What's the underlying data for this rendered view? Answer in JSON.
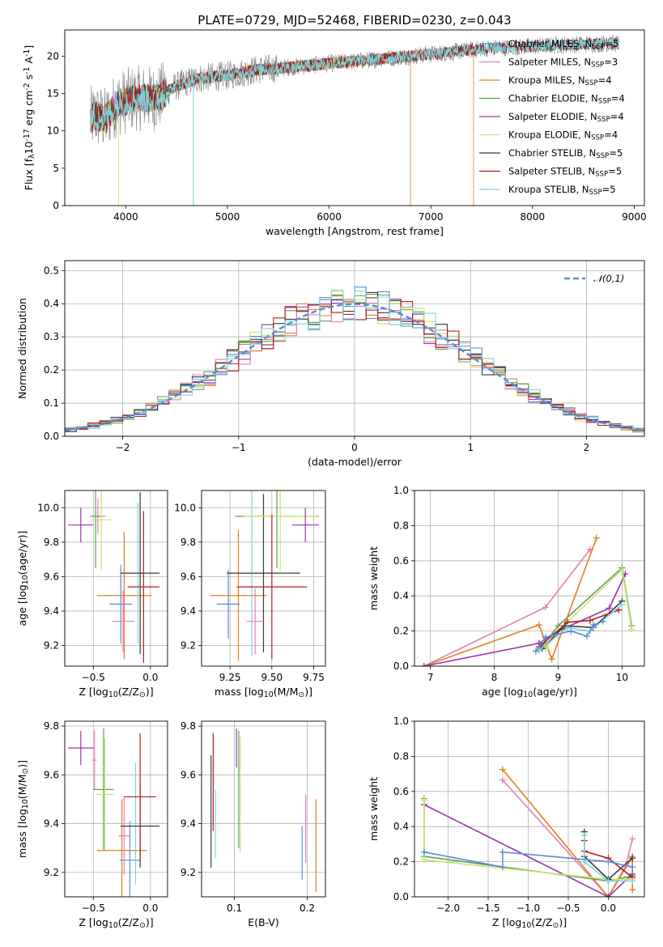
{
  "figure": {
    "title": "PLATE=0729, MJD=52468, FIBERID=0230, z=0.043"
  },
  "colors": {
    "blue": "#5b8bd5",
    "orange": "#e07f1f",
    "green": "#5c9f5a",
    "purple": "#9a36ae",
    "pink": "#e67fb3",
    "lime": "#c8e66b",
    "black": "#3a3a3a",
    "red": "#b41e1e",
    "cyan": "#7fd3dc",
    "gray": "#808080"
  },
  "chart_data": [
    {
      "id": "spectrum",
      "type": "line",
      "xlabel": "wavelength [Angstrom, rest frame]",
      "ylabel": "Flux [f$_\\lambda$10$^{-17}$ erg cm$^{-2}$ s$^{-1}$ A$^{-1}$]",
      "xlim": [
        3400,
        9100
      ],
      "ylim": [
        0,
        23.5
      ],
      "xticks": [
        4000,
        5000,
        6000,
        7000,
        8000,
        9000
      ],
      "yticks": [
        0,
        5,
        10,
        15,
        20
      ],
      "legend_position": "right",
      "series": [
        {
          "name": "Chabrier MILES, N$_{SSP}$=5",
          "color": "blue",
          "range": [
            3650,
            7420
          ]
        },
        {
          "name": "Salpeter MILES, N$_{SSP}$=3",
          "color": "pink",
          "range": [
            3650,
            7420
          ]
        },
        {
          "name": "Kroupa MILES, N$_{SSP}$=4",
          "color": "orange",
          "range": [
            3650,
            7420
          ]
        },
        {
          "name": "Chabrier ELODIE, N$_{SSP}$=4",
          "color": "green",
          "range": [
            3650,
            6800
          ]
        },
        {
          "name": "Salpeter ELODIE, N$_{SSP}$=4",
          "color": "purple",
          "range": [
            3650,
            6800
          ]
        },
        {
          "name": "Kroupa ELODIE, N$_{SSP}$=4",
          "color": "lime",
          "range": [
            3650,
            6800
          ]
        },
        {
          "name": "Chabrier STELIB, N$_{SSP}$=5",
          "color": "black",
          "range": [
            3650,
            8850
          ]
        },
        {
          "name": "Salpeter STELIB, N$_{SSP}$=5",
          "color": "red",
          "range": [
            3650,
            8850
          ]
        },
        {
          "name": "Kroupa STELIB, N$_{SSP}$=5",
          "color": "cyan",
          "range": [
            3650,
            8850
          ]
        }
      ],
      "data_color": "gray",
      "continuum": {
        "x": [
          3650,
          3700,
          3800,
          3900,
          4000,
          4100,
          4200,
          4300,
          4400,
          4500,
          4700,
          5000,
          5300,
          5600,
          6000,
          6400,
          6800,
          7200,
          7500,
          8000,
          8500,
          8850
        ],
        "y": [
          11.5,
          12.0,
          11.5,
          13.5,
          14.0,
          14.4,
          14.4,
          14.3,
          15.2,
          16.0,
          17.0,
          17.4,
          18.2,
          18.5,
          19.0,
          19.5,
          20.0,
          20.5,
          21.0,
          21.3,
          21.6,
          21.7
        ]
      },
      "dips": [
        {
          "x": 4665,
          "series": "cyan"
        },
        {
          "x": 6800,
          "series": "orange"
        },
        {
          "x": 7420,
          "series": "orange"
        },
        {
          "x": 3930,
          "series": "lime"
        }
      ]
    },
    {
      "id": "residuals",
      "type": "line",
      "xlabel": "(data-model)/error",
      "ylabel": "Normed distribution",
      "xlim": [
        -2.5,
        2.5
      ],
      "ylim": [
        0,
        0.53
      ],
      "xticks": [
        -2,
        -1,
        0,
        1,
        2
      ],
      "yticks": [
        0.0,
        0.1,
        0.2,
        0.3,
        0.4,
        0.5
      ],
      "legend": "$\\mathcal{N}(0,1)$",
      "legend_position": "top-right",
      "bin_width": 0.1,
      "curve": {
        "name": "normal",
        "mu": 0,
        "sigma": 1,
        "color": "blue"
      }
    },
    {
      "id": "age-vs-Z",
      "type": "scatter",
      "xlabel": "Z [log$_{10}$(Z/Z$_\\odot$)]",
      "ylabel": "age  [log$_{10}$(age/yr)]",
      "xlim": [
        -0.75,
        0.15
      ],
      "ylim": [
        9.08,
        10.1
      ],
      "xticks": [
        -0.5,
        0.0
      ],
      "yticks": [
        9.2,
        9.4,
        9.6,
        9.8,
        10.0
      ],
      "points": [
        {
          "series": "purple",
          "x": -0.61,
          "y": 9.9,
          "xerr": 0.11,
          "yerr": 0.1
        },
        {
          "series": "pink",
          "x": -0.46,
          "y": 9.95,
          "xerr": 0.07,
          "yerr": 0.1
        },
        {
          "series": "green",
          "x": -0.48,
          "y": 9.95,
          "xerr": 0.04,
          "yerr": 0.3
        },
        {
          "series": "lime",
          "x": -0.43,
          "y": 9.93,
          "xerr": 0.09,
          "yerr": 0.29
        },
        {
          "series": "orange",
          "x": -0.23,
          "y": 9.49,
          "xerr": 0.24,
          "yerr": 0.37
        },
        {
          "series": "blue",
          "x": -0.26,
          "y": 9.44,
          "xerr": 0.1,
          "yerr": 0.23
        },
        {
          "series": "pink",
          "x": -0.24,
          "y": 9.34,
          "xerr": 0.1,
          "yerr": 0.18
        },
        {
          "series": "cyan",
          "x": -0.11,
          "y": 9.62,
          "xerr": 0.06,
          "yerr": 0.41
        },
        {
          "series": "black",
          "x": -0.09,
          "y": 9.62,
          "xerr": 0.17,
          "yerr": 0.47
        },
        {
          "series": "red",
          "x": -0.06,
          "y": 9.54,
          "xerr": 0.14,
          "yerr": 0.44
        }
      ]
    },
    {
      "id": "age-vs-mass",
      "type": "scatter",
      "xlabel": "mass [log$_{10}$(M/M$_\\odot$)]",
      "ylabel": "",
      "xlim": [
        9.08,
        9.82
      ],
      "ylim": [
        9.08,
        10.1
      ],
      "xticks": [
        9.25,
        9.5,
        9.75
      ],
      "yticks": [
        9.2,
        9.4,
        9.6,
        9.8,
        10.0
      ],
      "points": [
        {
          "series": "blue",
          "x": 9.24,
          "y": 9.44,
          "xerr": 0.07,
          "yerr": 0.2
        },
        {
          "series": "orange",
          "x": 9.3,
          "y": 9.49,
          "xerr": 0.17,
          "yerr": 0.38
        },
        {
          "series": "green",
          "x": 9.53,
          "y": 9.95,
          "xerr": 0.25,
          "yerr": 0.3
        },
        {
          "series": "cyan",
          "x": 9.38,
          "y": 9.62,
          "xerr": 0.1,
          "yerr": 0.48
        },
        {
          "series": "black",
          "x": 9.45,
          "y": 9.62,
          "xerr": 0.22,
          "yerr": 0.46
        },
        {
          "series": "lime",
          "x": 9.55,
          "y": 9.95,
          "xerr": 0.22,
          "yerr": 0.32
        },
        {
          "series": "pink",
          "x": 9.4,
          "y": 9.34,
          "xerr": 0.05,
          "yerr": 0.19
        },
        {
          "series": "red",
          "x": 9.5,
          "y": 9.54,
          "xerr": 0.21,
          "yerr": 0.42
        },
        {
          "series": "purple",
          "x": 9.7,
          "y": 9.9,
          "xerr": 0.08,
          "yerr": 0.1
        }
      ]
    },
    {
      "id": "weight-vs-age",
      "type": "line",
      "xlabel": "age  [log$_{10}$(age/yr)]",
      "ylabel": "mass weight",
      "xlim": [
        6.75,
        10.35
      ],
      "ylim": [
        0,
        1.0
      ],
      "xticks": [
        7,
        8,
        9,
        10
      ],
      "yticks": [
        0.0,
        0.2,
        0.4,
        0.6,
        0.8,
        1.0
      ],
      "series": [
        {
          "color": "pink",
          "x": [
            6.9,
            8.8,
            9.5
          ],
          "y": [
            0.0,
            0.335,
            0.665
          ]
        },
        {
          "color": "orange",
          "x": [
            6.9,
            8.7,
            8.9,
            9.6
          ],
          "y": [
            0.0,
            0.235,
            0.04,
            0.73
          ]
        },
        {
          "color": "purple",
          "x": [
            6.9,
            8.7,
            9.0,
            9.8,
            10.05
          ],
          "y": [
            0.0,
            0.13,
            0.2,
            0.33,
            0.525
          ]
        },
        {
          "color": "green",
          "x": [
            8.7,
            9.0,
            10.0,
            10.15
          ],
          "y": [
            0.09,
            0.23,
            0.56,
            0.23
          ]
        },
        {
          "color": "lime",
          "x": [
            8.8,
            9.0,
            10.0,
            10.15
          ],
          "y": [
            0.1,
            0.2,
            0.55,
            0.21
          ]
        },
        {
          "color": "black",
          "x": [
            8.75,
            9.1,
            9.55,
            10.0
          ],
          "y": [
            0.1,
            0.23,
            0.22,
            0.37
          ]
        },
        {
          "color": "red",
          "x": [
            8.7,
            9.15,
            9.5,
            9.95
          ],
          "y": [
            0.11,
            0.25,
            0.26,
            0.32
          ]
        },
        {
          "color": "cyan",
          "x": [
            8.7,
            9.15,
            9.5,
            10.0
          ],
          "y": [
            0.09,
            0.22,
            0.2,
            0.35
          ]
        },
        {
          "color": "blue",
          "x": [
            8.65,
            8.8,
            9.2,
            9.45,
            9.55,
            9.7
          ],
          "y": [
            0.085,
            0.165,
            0.2,
            0.17,
            0.235,
            0.255
          ]
        }
      ]
    },
    {
      "id": "mass-vs-Z",
      "type": "scatter",
      "xlabel": "Z [log$_{10}$(Z/Z$_\\odot$)]",
      "ylabel": "mass [log$_{10}$(M/M$_\\odot$)]",
      "xlim": [
        -0.75,
        0.15
      ],
      "ylim": [
        9.1,
        9.82
      ],
      "xticks": [
        -0.5,
        0.0
      ],
      "yticks": [
        9.2,
        9.4,
        9.6,
        9.8
      ],
      "points": [
        {
          "series": "purple",
          "x": -0.61,
          "y": 9.71,
          "xerr": 0.11,
          "yerr": 0.07
        },
        {
          "series": "pink",
          "x": -0.49,
          "y": 9.66,
          "xerr": 0.02,
          "yerr": 0.12
        },
        {
          "series": "green",
          "x": -0.41,
          "y": 9.54,
          "xerr": 0.09,
          "yerr": 0.25
        },
        {
          "series": "lime",
          "x": -0.4,
          "y": 9.52,
          "xerr": 0.08,
          "yerr": 0.23
        },
        {
          "series": "orange",
          "x": -0.25,
          "y": 9.29,
          "xerr": 0.22,
          "yerr": 0.21
        },
        {
          "series": "pink",
          "x": -0.23,
          "y": 9.35,
          "xerr": 0.05,
          "yerr": 0.16
        },
        {
          "series": "blue",
          "x": -0.18,
          "y": 9.25,
          "xerr": 0.09,
          "yerr": 0.16
        },
        {
          "series": "cyan",
          "x": -0.13,
          "y": 9.4,
          "xerr": 0.06,
          "yerr": 0.25
        },
        {
          "series": "black",
          "x": -0.09,
          "y": 9.39,
          "xerr": 0.17,
          "yerr": 0.17
        },
        {
          "series": "red",
          "x": -0.09,
          "y": 9.51,
          "xerr": 0.14,
          "yerr": 0.26
        }
      ]
    },
    {
      "id": "mass-vs-EBV",
      "type": "scatter",
      "xlabel": "E(B-V)",
      "ylabel": "",
      "xlim": [
        0.055,
        0.225
      ],
      "ylim": [
        9.1,
        9.82
      ],
      "xticks": [
        0.1,
        0.2
      ],
      "yticks": [
        9.2,
        9.4,
        9.6,
        9.8
      ],
      "points": [
        {
          "series": "black",
          "x": 0.068,
          "y": 9.45,
          "xerr": 0.0,
          "yerr": 0.23
        },
        {
          "series": "red",
          "x": 0.071,
          "y": 9.57,
          "xerr": 0.0,
          "yerr": 0.2
        },
        {
          "series": "cyan",
          "x": 0.074,
          "y": 9.4,
          "xerr": 0.0,
          "yerr": 0.14
        },
        {
          "series": "purple",
          "x": 0.103,
          "y": 9.71,
          "xerr": 0.0,
          "yerr": 0.08
        },
        {
          "series": "green",
          "x": 0.106,
          "y": 9.54,
          "xerr": 0.0,
          "yerr": 0.24
        },
        {
          "series": "lime",
          "x": 0.108,
          "y": 9.52,
          "xerr": 0.0,
          "yerr": 0.24
        },
        {
          "series": "blue",
          "x": 0.193,
          "y": 9.28,
          "xerr": 0.0,
          "yerr": 0.11
        },
        {
          "series": "pink",
          "x": 0.198,
          "y": 9.38,
          "xerr": 0.0,
          "yerr": 0.14
        },
        {
          "series": "orange",
          "x": 0.212,
          "y": 9.31,
          "xerr": 0.0,
          "yerr": 0.19
        }
      ]
    },
    {
      "id": "weight-vs-Z",
      "type": "line",
      "xlabel": "Z [log$_{10}$(Z/Z$_\\odot$)]",
      "ylabel": "mass weight",
      "xlim": [
        -2.42,
        0.45
      ],
      "ylim": [
        0,
        1.0
      ],
      "xticks": [
        -2.0,
        -1.5,
        -1.0,
        -0.5,
        0.0
      ],
      "yticks": [
        0.0,
        0.2,
        0.4,
        0.6,
        0.8,
        1.0
      ],
      "series": [
        {
          "color": "pink",
          "x": [
            -1.32,
            0.0,
            0.22,
            0.3
          ],
          "y": [
            0.665,
            0.0,
            0.18,
            0.33
          ]
        },
        {
          "color": "orange",
          "x": [
            -1.32,
            0.0,
            0.3,
            0.3,
            0.3
          ],
          "y": [
            0.725,
            0.0,
            0.23,
            0.04,
            0.1
          ]
        },
        {
          "color": "purple",
          "x": [
            -2.3,
            0.0,
            0.3
          ],
          "y": [
            0.525,
            0.0,
            0.13
          ]
        },
        {
          "color": "green",
          "x": [
            -2.3,
            -2.3,
            0.0,
            0.3
          ],
          "y": [
            0.56,
            0.23,
            0.09,
            0.12
          ]
        },
        {
          "color": "lime",
          "x": [
            -2.3,
            -2.3,
            0.0,
            0.3
          ],
          "y": [
            0.55,
            0.21,
            0.1,
            0.1
          ]
        },
        {
          "color": "black",
          "x": [
            -0.3,
            -0.3,
            0.0,
            0.3
          ],
          "y": [
            0.37,
            0.23,
            0.1,
            0.22
          ]
        },
        {
          "color": "red",
          "x": [
            -0.3,
            -0.3,
            0.0,
            0.3
          ],
          "y": [
            0.32,
            0.26,
            0.22,
            0.11
          ]
        },
        {
          "color": "cyan",
          "x": [
            -0.3,
            -0.3,
            0.0,
            0.3
          ],
          "y": [
            0.35,
            0.2,
            0.09,
            0.09
          ]
        },
        {
          "color": "blue",
          "x": [
            -2.3,
            -1.32,
            -1.32,
            0.0,
            0.3
          ],
          "y": [
            0.255,
            0.17,
            0.255,
            0.2,
            0.17
          ]
        }
      ]
    }
  ]
}
